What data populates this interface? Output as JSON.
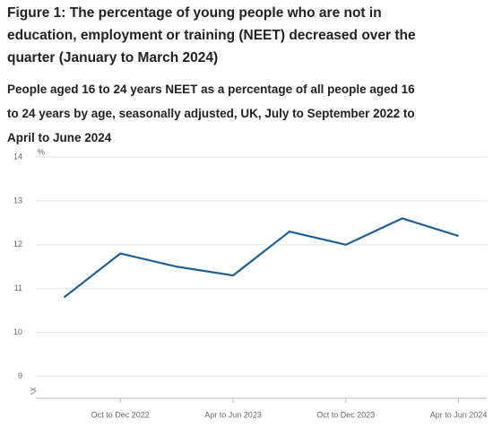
{
  "chart_data": {
    "type": "line",
    "title": "Figure 1: The percentage of young people who are not in education, employment or training (NEET) decreased over the quarter (January to March 2024)",
    "subtitle": "People aged 16 to 24 years NEET as a percentage of all people aged 16 to 24 years by age, seasonally adjusted, UK, July to September 2022 to April to June 2024",
    "y_unit": "%",
    "categories": [
      null,
      "Oct to Dec 2022",
      null,
      "Apr to Jun 2023",
      null,
      "Oct to Dec 2023",
      null,
      "Apr to Jun 2024"
    ],
    "series": [
      {
        "name": "NEET",
        "color": "#206095",
        "values": [
          10.8,
          11.8,
          11.5,
          11.3,
          12.3,
          12.0,
          12.6,
          12.2
        ]
      }
    ],
    "ylim": [
      8.5,
      14
    ],
    "yticks": [
      9,
      10,
      11,
      12,
      13,
      14
    ],
    "grid": true
  }
}
